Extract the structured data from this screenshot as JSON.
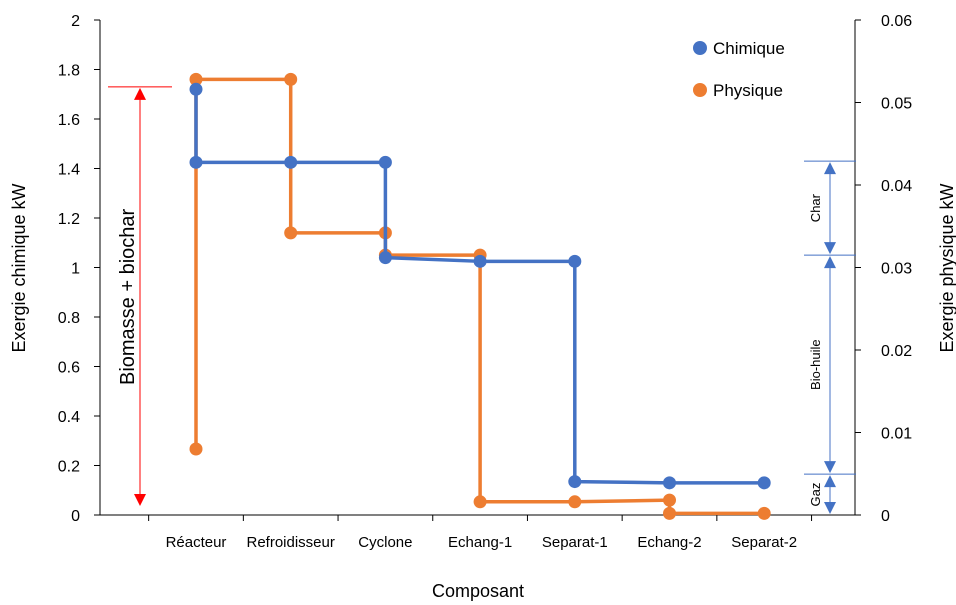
{
  "chart_data": {
    "type": "line",
    "categories": [
      "Réacteur",
      "Refroidisseur",
      "Cyclone",
      "Echang-1",
      "Separat-1",
      "Echang-2",
      "Separat-2"
    ],
    "xlabel": "Composant",
    "ylabel": "Exergie chimique kW",
    "y2label": "Exergie physique kW",
    "ylim": [
      0,
      2
    ],
    "y2lim": [
      0,
      0.06
    ],
    "yticks": [
      "0",
      "0.2",
      "0.4",
      "0.6",
      "0.8",
      "1",
      "1.2",
      "1.4",
      "1.6",
      "1.8",
      "2"
    ],
    "y2ticks": [
      "0",
      "0.01",
      "0.02",
      "0.03",
      "0.04",
      "0.05",
      "0.06"
    ],
    "legend_position": "top-right",
    "grid": false,
    "series": [
      {
        "name": "Chimique",
        "axis": "left",
        "color": "#4472C4",
        "points": [
          [
            0,
            1.72
          ],
          [
            0,
            1.425
          ],
          [
            1,
            1.425
          ],
          [
            2,
            1.425
          ],
          [
            2,
            1.04
          ],
          [
            3,
            1.025
          ],
          [
            4,
            1.025
          ],
          [
            4,
            0.135
          ],
          [
            5,
            0.13
          ],
          [
            6,
            0.13
          ]
        ]
      },
      {
        "name": "Physique",
        "axis": "right",
        "color": "#ED7D31",
        "points": [
          [
            0,
            0.008
          ],
          [
            0,
            0.0528
          ],
          [
            1,
            0.0528
          ],
          [
            1,
            0.0342
          ],
          [
            2,
            0.0342
          ],
          [
            2,
            0.0315
          ],
          [
            3,
            0.0315
          ],
          [
            3,
            0.0016
          ],
          [
            4,
            0.0016
          ],
          [
            5,
            0.0018
          ],
          [
            5,
            0.0002
          ],
          [
            6,
            0.0002
          ]
        ]
      }
    ],
    "annotations": {
      "main_arrow": {
        "label": "Biomasse + biochar",
        "color": "#FF0000",
        "top_value": 1.73,
        "bottom_value": 0
      },
      "brackets": [
        {
          "label": "Char",
          "top_value": 1.43,
          "bottom_value": 1.05
        },
        {
          "label": "Bio-huile",
          "top_value": 1.05,
          "bottom_value": 0.165
        },
        {
          "label": "Gaz",
          "top_value": 0.165,
          "bottom_value": 0
        }
      ],
      "bracket_color": "#4472C4"
    }
  }
}
